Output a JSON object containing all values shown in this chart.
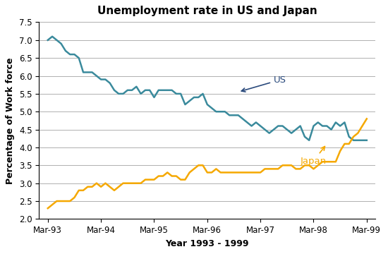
{
  "title": "Unemployment rate in US and Japan",
  "xlabel": "Year 1993 - 1999",
  "ylabel": "Percentage of Work force",
  "us_color": "#3a8a9c",
  "japan_color": "#f5a800",
  "annotation_us_color": "#2a4a7c",
  "annotation_japan_color": "#f5a800",
  "ylim": [
    2.0,
    7.5
  ],
  "yticks": [
    2.0,
    2.5,
    3.0,
    3.5,
    4.0,
    4.5,
    5.0,
    5.5,
    6.0,
    6.5,
    7.0,
    7.5
  ],
  "xtick_labels": [
    "Mar-93",
    "Mar-94",
    "Mar-95",
    "Mar-96",
    "Mar-97",
    "Mar-98",
    "Mar-99"
  ],
  "us_data": [
    7.0,
    7.1,
    7.0,
    6.9,
    6.7,
    6.6,
    6.6,
    6.5,
    6.1,
    6.1,
    6.1,
    6.0,
    5.9,
    5.9,
    5.8,
    5.6,
    5.5,
    5.5,
    5.6,
    5.6,
    5.7,
    5.5,
    5.6,
    5.6,
    5.4,
    5.6,
    5.6,
    5.6,
    5.6,
    5.5,
    5.5,
    5.2,
    5.3,
    5.4,
    5.4,
    5.5,
    5.2,
    5.1,
    5.0,
    5.0,
    5.0,
    4.9,
    4.9,
    4.9,
    4.8,
    4.7,
    4.6,
    4.7,
    4.6,
    4.5,
    4.4,
    4.5,
    4.6,
    4.6,
    4.5,
    4.4,
    4.5,
    4.6,
    4.3,
    4.2,
    4.6,
    4.7,
    4.6,
    4.6,
    4.5,
    4.7,
    4.6,
    4.7,
    4.3,
    4.2,
    4.2,
    4.2,
    4.2
  ],
  "japan_data": [
    2.3,
    2.4,
    2.5,
    2.5,
    2.5,
    2.5,
    2.6,
    2.8,
    2.8,
    2.9,
    2.9,
    3.0,
    2.9,
    3.0,
    2.9,
    2.8,
    2.9,
    3.0,
    3.0,
    3.0,
    3.0,
    3.0,
    3.1,
    3.1,
    3.1,
    3.2,
    3.2,
    3.3,
    3.2,
    3.2,
    3.1,
    3.1,
    3.3,
    3.4,
    3.5,
    3.5,
    3.3,
    3.3,
    3.4,
    3.3,
    3.3,
    3.3,
    3.3,
    3.3,
    3.3,
    3.3,
    3.3,
    3.3,
    3.3,
    3.4,
    3.4,
    3.4,
    3.4,
    3.5,
    3.5,
    3.5,
    3.4,
    3.4,
    3.5,
    3.5,
    3.4,
    3.5,
    3.6,
    3.6,
    3.6,
    3.6,
    3.9,
    4.1,
    4.1,
    4.3,
    4.4,
    4.6,
    4.8
  ],
  "grid_color": "#b0b0b0",
  "background_color": "#ffffff",
  "title_fontsize": 11,
  "label_fontsize": 9,
  "tick_fontsize": 8.5
}
